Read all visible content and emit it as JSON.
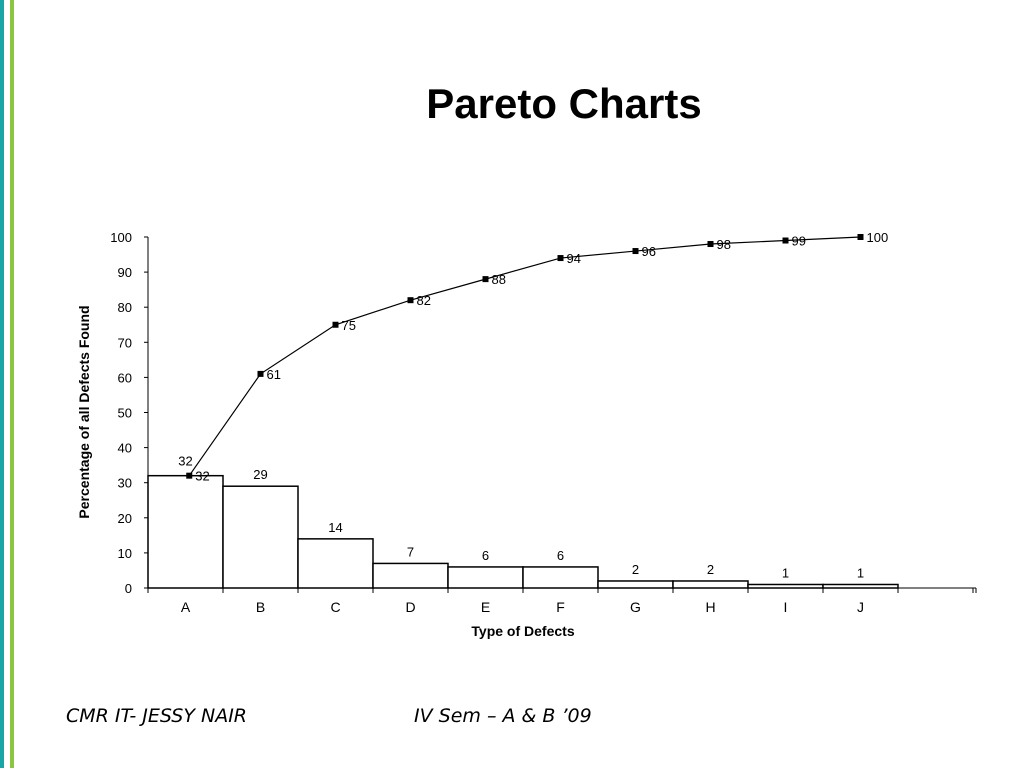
{
  "slide": {
    "title": "Pareto Charts",
    "footer_left": "CMR IT- JESSY NAIR",
    "footer_right": "IV Sem – A & B ’09"
  },
  "colors": {
    "accent_teal": "#1aa6a6",
    "accent_green": "#8cc63f",
    "ink": "#000000"
  },
  "chart_data": {
    "type": "bar",
    "title": "",
    "xlabel": "Type of Defects",
    "ylabel": "Percentage of all Defects Found",
    "ylim": [
      0,
      100
    ],
    "yticks": [
      0,
      10,
      20,
      30,
      40,
      50,
      60,
      70,
      80,
      90,
      100
    ],
    "categories": [
      "A",
      "B",
      "C",
      "D",
      "E",
      "F",
      "G",
      "H",
      "I",
      "J"
    ],
    "grid": false,
    "series": [
      {
        "kind": "bar",
        "values": [
          32,
          29,
          14,
          7,
          6,
          6,
          2,
          2,
          1,
          1
        ]
      },
      {
        "kind": "line",
        "values": [
          32,
          61,
          75,
          82,
          88,
          94,
          96,
          98,
          99,
          100
        ]
      }
    ]
  }
}
